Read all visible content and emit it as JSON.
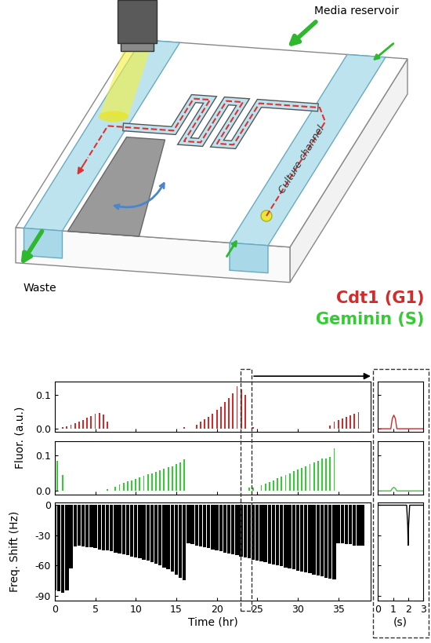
{
  "diagram": {
    "labels": {
      "media": "Media reservoir",
      "culture": "Culture channel",
      "waste": "Waste"
    }
  },
  "chart_data": [
    {
      "type": "bar",
      "y_label": "Fluor. (a.u.)",
      "x": [
        1.0,
        1.5,
        2.0,
        2.5,
        3.0,
        3.5,
        4.0,
        4.5,
        5.0,
        5.5,
        6.0,
        6.5,
        16.0,
        17.5,
        18.0,
        18.5,
        19.0,
        19.5,
        20.0,
        20.5,
        21.0,
        21.5,
        22.0,
        22.5,
        23.0,
        23.5,
        24.5,
        34.0,
        34.5,
        35.0,
        35.5,
        36.0,
        36.5,
        37.0,
        37.5
      ],
      "series": [
        {
          "name": "Cdt1 (G1)",
          "color": "#d42a2a",
          "values": [
            0.004,
            0.008,
            0.012,
            0.016,
            0.02,
            0.026,
            0.032,
            0.038,
            0.044,
            0.047,
            0.042,
            0.02,
            0.004,
            0.012,
            0.02,
            0.028,
            0.036,
            0.045,
            0.055,
            0.065,
            0.078,
            0.09,
            0.105,
            0.125,
            0.115,
            0.1,
            0.005,
            0.01,
            0.02,
            0.025,
            0.03,
            0.035,
            0.04,
            0.045,
            0.048
          ]
        }
      ],
      "xlim": [
        0,
        39
      ],
      "xticks": [
        0,
        5,
        10,
        15,
        20,
        25,
        30,
        35
      ],
      "ylim": [
        -0.01,
        0.14
      ],
      "yticks": [
        {
          "value": 0,
          "label": "0.0"
        },
        {
          "value": 0.1,
          "label": "0.1"
        }
      ],
      "tick_labels": "y"
    },
    {
      "type": "bar",
      "x": [
        0.3,
        1.0,
        6.5,
        7.5,
        8.0,
        8.5,
        9.0,
        9.5,
        10.0,
        10.5,
        11.0,
        11.5,
        12.0,
        12.5,
        13.0,
        13.5,
        14.0,
        14.5,
        15.0,
        15.5,
        16.0,
        24.0,
        24.5,
        25.5,
        26.0,
        26.5,
        27.0,
        27.5,
        28.0,
        28.5,
        29.0,
        29.5,
        30.0,
        30.5,
        31.0,
        31.5,
        32.0,
        32.5,
        33.0,
        33.5,
        34.0,
        34.5
      ],
      "series": [
        {
          "name": "Geminin (S)",
          "color": "#33cc33",
          "values": [
            0.085,
            0.045,
            0.005,
            0.012,
            0.018,
            0.022,
            0.026,
            0.03,
            0.034,
            0.038,
            0.042,
            0.046,
            0.05,
            0.054,
            0.058,
            0.062,
            0.066,
            0.07,
            0.075,
            0.08,
            0.088,
            0.01,
            0.01,
            0.015,
            0.02,
            0.025,
            0.03,
            0.035,
            0.04,
            0.045,
            0.05,
            0.055,
            0.06,
            0.065,
            0.07,
            0.075,
            0.08,
            0.085,
            0.09,
            0.09,
            0.095,
            0.12
          ]
        }
      ],
      "xlim": [
        0,
        39
      ],
      "xticks": [
        0,
        5,
        10,
        15,
        20,
        25,
        30,
        35
      ],
      "ylim": [
        -0.01,
        0.14
      ],
      "yticks": [
        {
          "value": 0,
          "label": "0.0"
        },
        {
          "value": 0.1,
          "label": "0.1"
        }
      ],
      "tick_labels": "y"
    },
    {
      "type": "bar",
      "x_label": "Time (hr)",
      "y_label": "Freq. Shift (Hz)",
      "x": [
        0.0,
        0.5,
        1.0,
        1.5,
        2.0,
        2.5,
        3.0,
        3.5,
        4.0,
        4.5,
        5.0,
        5.5,
        6.0,
        6.5,
        7.0,
        7.5,
        8.0,
        8.5,
        9.0,
        9.5,
        10.0,
        10.5,
        11.0,
        11.5,
        12.0,
        12.5,
        13.0,
        13.5,
        14.0,
        14.5,
        15.0,
        15.5,
        16.0,
        16.5,
        17.0,
        17.5,
        18.0,
        18.5,
        19.0,
        19.5,
        20.0,
        20.5,
        21.0,
        21.5,
        22.0,
        22.5,
        23.0,
        23.5,
        24.0,
        24.5,
        25.0,
        25.5,
        26.0,
        26.5,
        27.0,
        27.5,
        28.0,
        28.5,
        29.0,
        29.5,
        30.0,
        30.5,
        31.0,
        31.5,
        32.0,
        32.5,
        33.0,
        33.5,
        34.0,
        34.5,
        35.0,
        35.5,
        36.0,
        36.5,
        37.0,
        37.5,
        38.0
      ],
      "series": [
        {
          "color": "#000000",
          "values": [
            -85,
            -86,
            -87,
            -85,
            -63,
            -41,
            -40,
            -41,
            -42,
            -42,
            -43,
            -44,
            -45,
            -45,
            -46,
            -47,
            -48,
            -49,
            -50,
            -51,
            -52,
            -53,
            -54,
            -55,
            -57,
            -58,
            -60,
            -62,
            -64,
            -66,
            -69,
            -72,
            -75,
            -38,
            -39,
            -40,
            -41,
            -42,
            -43,
            -44,
            -45,
            -46,
            -47,
            -48,
            -49,
            -50,
            -51,
            -52,
            -53,
            -54,
            -55,
            -56,
            -57,
            -58,
            -59,
            -60,
            -61,
            -62,
            -63,
            -64,
            -65,
            -66,
            -67,
            -68,
            -69,
            -70,
            -71,
            -72,
            -73,
            -74,
            -38,
            -38,
            -39,
            -39,
            -40,
            -40,
            -40
          ]
        }
      ],
      "xlim": [
        0,
        39
      ],
      "xticks": [
        0,
        5,
        10,
        15,
        20,
        25,
        30,
        35
      ],
      "ylim": [
        -95,
        3
      ],
      "yticks": [
        0,
        -30,
        -60,
        -90
      ]
    },
    {
      "type": "line",
      "x": [
        0,
        0.85,
        0.95,
        1.05,
        1.15,
        1.25,
        3
      ],
      "series": [
        {
          "color": "#d42a2a",
          "values": [
            0,
            0,
            0.03,
            0.04,
            0.03,
            0,
            0
          ]
        }
      ],
      "xlim": [
        0,
        3
      ],
      "xticks": [
        0,
        1,
        2,
        3
      ],
      "ylim": [
        -0.01,
        0.14
      ],
      "yticks": [
        {
          "value": 0,
          "label": "0.0"
        },
        {
          "value": 0.1,
          "label": "0.1"
        }
      ],
      "tick_labels": false
    },
    {
      "type": "line",
      "x": [
        0,
        0.85,
        0.95,
        1.05,
        1.15,
        1.25,
        3
      ],
      "series": [
        {
          "color": "#33cc33",
          "values": [
            0,
            0,
            0.007,
            0.01,
            0.007,
            0,
            0
          ]
        }
      ],
      "xlim": [
        0,
        3
      ],
      "xticks": [
        0,
        1,
        2,
        3
      ],
      "ylim": [
        -0.01,
        0.14
      ],
      "yticks": [
        {
          "value": 0,
          "label": "0.0"
        },
        {
          "value": 0.1,
          "label": "0.1"
        }
      ],
      "tick_labels": false
    },
    {
      "type": "line",
      "x_label": "(s)",
      "x": [
        0,
        1.9,
        1.97,
        2.0,
        2.03,
        2.1,
        3
      ],
      "series": [
        {
          "color": "#000000",
          "values": [
            0,
            0,
            -20,
            -40,
            -20,
            0,
            0
          ]
        }
      ],
      "xlim": [
        0,
        3
      ],
      "xticks": [
        0,
        1,
        2,
        3
      ],
      "ylim": [
        -95,
        3
      ],
      "yticks": [
        0,
        -30,
        -60,
        -90
      ],
      "tick_labels": "x"
    }
  ]
}
